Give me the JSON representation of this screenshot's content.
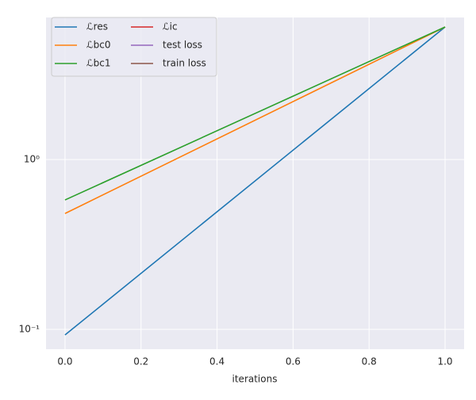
{
  "chart_data": {
    "type": "line",
    "x_label": "iterations",
    "x": [
      0,
      1
    ],
    "series": [
      {
        "name": "ℒres",
        "color": "#1f77b4",
        "values": [
          0.0927,
          6.03
        ]
      },
      {
        "name": "ℒbc0",
        "color": "#ff7f0e",
        "values": [
          0.481,
          6.03
        ]
      },
      {
        "name": "ℒbc1",
        "color": "#2ca02c",
        "values": [
          0.578,
          6.03
        ]
      },
      {
        "name": "ℒic",
        "color": "#d62728",
        "values": [
          null,
          null
        ]
      },
      {
        "name": "test loss",
        "color": "#9467bd",
        "values": [
          null,
          null
        ]
      },
      {
        "name": "train loss",
        "color": "#8c564b",
        "values": [
          null,
          null
        ]
      }
    ],
    "xlim": [
      -0.05,
      1.05
    ],
    "xticks": [
      {
        "value": 0,
        "label": "0.0"
      },
      {
        "value": 0.2,
        "label": "0.2"
      },
      {
        "value": 0.4,
        "label": "0.4"
      },
      {
        "value": 0.6,
        "label": "0.6"
      },
      {
        "value": 0.8,
        "label": "0.8"
      },
      {
        "value": 1,
        "label": "1.0"
      }
    ],
    "ylim": [
      0.0764,
      6.86
    ],
    "yticks": [
      {
        "value": 0.1,
        "label": "10⁻¹"
      },
      {
        "value": 1,
        "label": "10⁰"
      }
    ],
    "log_y": true,
    "grid": true,
    "legend": "upper left"
  }
}
